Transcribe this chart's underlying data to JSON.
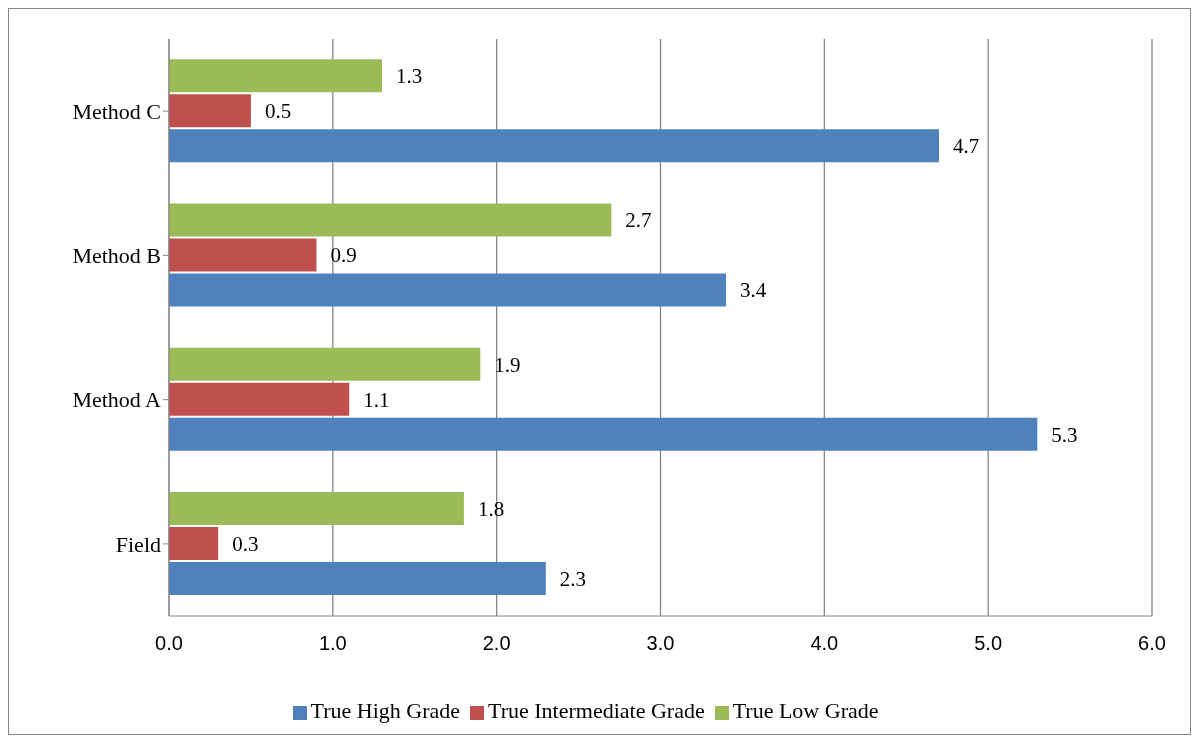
{
  "chart_data": {
    "type": "bar",
    "orientation": "horizontal",
    "categories": [
      "Method C",
      "Method B",
      "Method A",
      "Field"
    ],
    "series": [
      {
        "name": "True Low Grade",
        "color": "#9bbb59",
        "values": [
          1.3,
          2.7,
          1.9,
          1.8
        ]
      },
      {
        "name": "True Intermediate Grade",
        "color": "#c0504d",
        "values": [
          0.5,
          0.9,
          1.1,
          0.3
        ]
      },
      {
        "name": "True High Grade",
        "color": "#4f81bd",
        "values": [
          4.7,
          3.4,
          5.3,
          2.3
        ]
      }
    ],
    "xlim": [
      0,
      6
    ],
    "xticks": [
      {
        "value": 0,
        "label": "0.0"
      },
      {
        "value": 1,
        "label": "1.0"
      },
      {
        "value": 2,
        "label": "2.0"
      },
      {
        "value": 3,
        "label": "3.0"
      },
      {
        "value": 4,
        "label": "4.0"
      },
      {
        "value": 5,
        "label": "5.0"
      },
      {
        "value": 6,
        "label": "6.0"
      }
    ],
    "grid": "x",
    "legend": "bottom",
    "data_labels": true
  }
}
